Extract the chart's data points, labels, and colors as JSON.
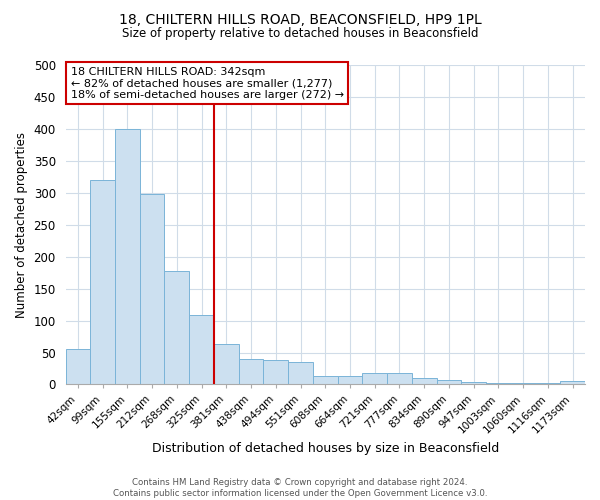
{
  "title": "18, CHILTERN HILLS ROAD, BEACONSFIELD, HP9 1PL",
  "subtitle": "Size of property relative to detached houses in Beaconsfield",
  "xlabel": "Distribution of detached houses by size in Beaconsfield",
  "ylabel": "Number of detached properties",
  "categories": [
    "42sqm",
    "99sqm",
    "155sqm",
    "212sqm",
    "268sqm",
    "325sqm",
    "381sqm",
    "438sqm",
    "494sqm",
    "551sqm",
    "608sqm",
    "664sqm",
    "721sqm",
    "777sqm",
    "834sqm",
    "890sqm",
    "947sqm",
    "1003sqm",
    "1060sqm",
    "1116sqm",
    "1173sqm"
  ],
  "values": [
    55,
    320,
    400,
    298,
    178,
    108,
    63,
    40,
    38,
    35,
    13,
    13,
    18,
    18,
    10,
    7,
    4,
    3,
    2,
    2,
    6
  ],
  "bar_color": "#cce0f0",
  "bar_edge_color": "#7ab4d8",
  "vline_x": 5.5,
  "vline_color": "#cc0000",
  "ylim": [
    0,
    500
  ],
  "yticks": [
    0,
    50,
    100,
    150,
    200,
    250,
    300,
    350,
    400,
    450,
    500
  ],
  "annotation_title": "18 CHILTERN HILLS ROAD: 342sqm",
  "annotation_line1": "← 82% of detached houses are smaller (1,277)",
  "annotation_line2": "18% of semi-detached houses are larger (272) →",
  "annotation_box_color": "#ffffff",
  "annotation_box_edge": "#cc0000",
  "footer_line1": "Contains HM Land Registry data © Crown copyright and database right 2024.",
  "footer_line2": "Contains public sector information licensed under the Open Government Licence v3.0.",
  "background_color": "#ffffff",
  "grid_color": "#d0dce8"
}
